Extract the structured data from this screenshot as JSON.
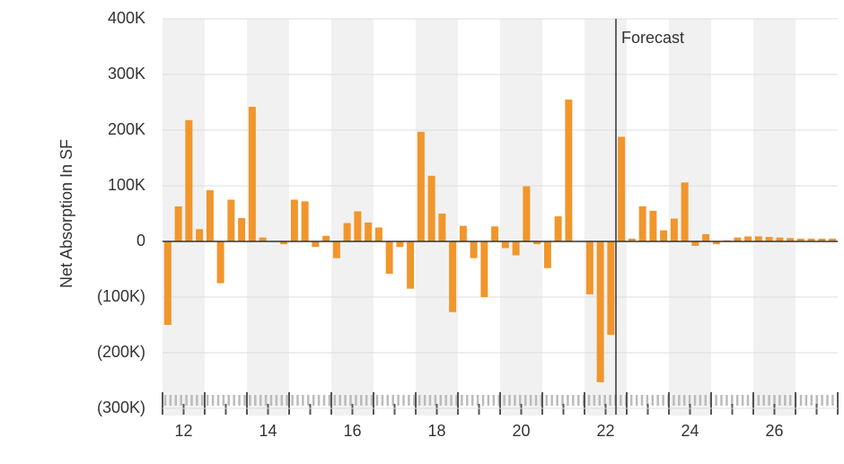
{
  "chart_data": {
    "type": "bar",
    "y_axis_label": "Net Absorption In SF",
    "annotation": "Forecast",
    "x_labels": [
      "12",
      "14",
      "16",
      "18",
      "20",
      "22",
      "24",
      "26"
    ],
    "values": [
      -150000,
      63000,
      218000,
      22000,
      92000,
      -75000,
      75000,
      42000,
      242000,
      7000,
      0,
      -5000,
      75000,
      72000,
      -10000,
      10000,
      -30000,
      33000,
      54000,
      34000,
      25000,
      -58000,
      -10000,
      -85000,
      197000,
      118000,
      50000,
      -127000,
      28000,
      -30000,
      -100000,
      27000,
      -12000,
      -25000,
      99000,
      -5000,
      -48000,
      45000,
      255000,
      0,
      -95000,
      -253000,
      -168000,
      188000,
      5000,
      63000,
      55000,
      20000,
      41000,
      106000,
      -8000,
      13000,
      -5000,
      2000,
      7000,
      9000,
      9000,
      8000,
      7000,
      6000,
      5000,
      5000,
      5000,
      5000
    ],
    "color": "#f0962c",
    "ylim": [
      -300000,
      400000
    ],
    "yticks": [
      {
        "value": -300000,
        "label": "(300K)"
      },
      {
        "value": -200000,
        "label": "(200K)"
      },
      {
        "value": -100000,
        "label": "(100K)"
      },
      0,
      {
        "value": 100000,
        "label": "100K"
      },
      {
        "value": 200000,
        "label": "200K"
      },
      {
        "value": 300000,
        "label": "300K"
      },
      {
        "value": 400000,
        "label": "400K"
      }
    ],
    "grid": true
  }
}
